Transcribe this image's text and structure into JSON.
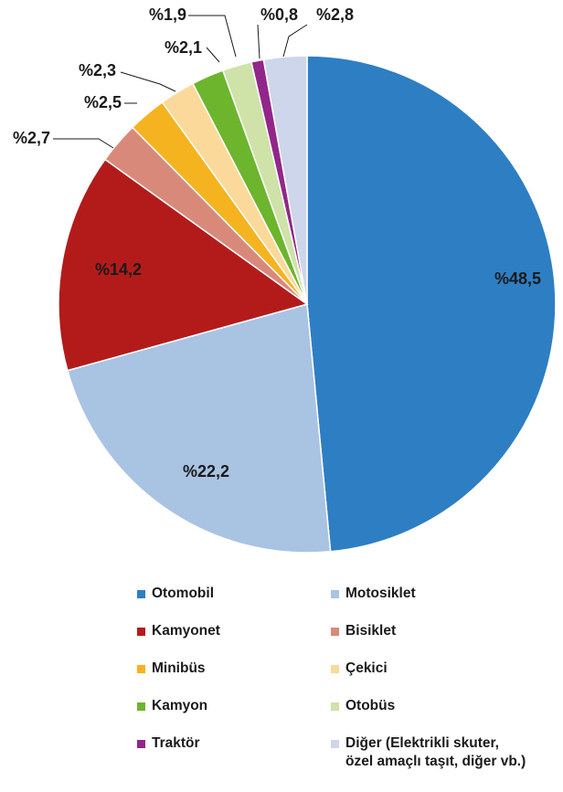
{
  "chart_data": {
    "type": "pie",
    "title": "",
    "categories": [
      "Otomobil",
      "Motosiklet",
      "Kamyonet",
      "Bisiklet",
      "Minibüs",
      "Çekici",
      "Kamyon",
      "Otobüs",
      "Traktör",
      "Diğer (Elektrikli skuter,\nözel amaçlı taşıt, diğer vb.)"
    ],
    "values": [
      48.5,
      22.2,
      14.2,
      2.7,
      2.5,
      2.3,
      2.1,
      1.9,
      0.8,
      2.8
    ],
    "labels": [
      "%48,5",
      "%22,2",
      "%14,2",
      "%2,7",
      "%2,5",
      "%2,3",
      "%2,1",
      "%1,9",
      "%0,8",
      "%2,8"
    ],
    "colors": [
      "#2e7ec4",
      "#a9c3e3",
      "#b31b1b",
      "#d9897a",
      "#f5b320",
      "#fad99a",
      "#6cb52d",
      "#cfe2a8",
      "#92268a",
      "#cdd6ea"
    ],
    "legend_position": "bottom"
  }
}
